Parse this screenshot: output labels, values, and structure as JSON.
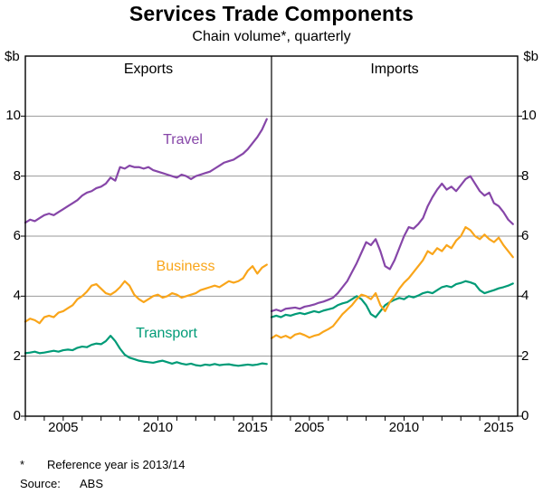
{
  "title": "Services Trade Components",
  "subtitle": "Chain volume*, quarterly",
  "unit_left": "$b",
  "unit_right": "$b",
  "footnote": {
    "marker": "*",
    "text": "Reference year is 2013/14"
  },
  "source": {
    "label": "Source:",
    "value": "ABS"
  },
  "chart_data": {
    "type": "line",
    "title": "Services Trade Components",
    "subtitle": "Chain volume*, quarterly",
    "unit": "$b",
    "x_start": 2003.0,
    "x_step": 0.25,
    "xlim": [
      2003,
      2016
    ],
    "ylim": [
      0,
      12
    ],
    "yticks": [
      0,
      2,
      4,
      6,
      8,
      10
    ],
    "xticks_labeled": [
      2005,
      2010,
      2015
    ],
    "grid": "horizontal",
    "legend_position": "inline-labels",
    "colors": {
      "Travel": "#8646A8",
      "Business": "#F9A51A",
      "Transport": "#009B77"
    },
    "panels": [
      {
        "name": "Exports",
        "series": [
          {
            "name": "Travel",
            "values": [
              6.45,
              6.55,
              6.5,
              6.6,
              6.7,
              6.75,
              6.7,
              6.8,
              6.9,
              7.0,
              7.1,
              7.2,
              7.35,
              7.45,
              7.5,
              7.6,
              7.65,
              7.75,
              7.95,
              7.85,
              8.3,
              8.25,
              8.35,
              8.3,
              8.3,
              8.25,
              8.3,
              8.2,
              8.15,
              8.1,
              8.05,
              8.0,
              7.95,
              8.05,
              8.0,
              7.9,
              8.0,
              8.05,
              8.1,
              8.15,
              8.25,
              8.35,
              8.45,
              8.5,
              8.55,
              8.65,
              8.75,
              8.9,
              9.1,
              9.3,
              9.55,
              9.9
            ]
          },
          {
            "name": "Business",
            "values": [
              3.15,
              3.25,
              3.2,
              3.1,
              3.3,
              3.35,
              3.3,
              3.45,
              3.5,
              3.6,
              3.7,
              3.9,
              4.0,
              4.15,
              4.35,
              4.4,
              4.25,
              4.1,
              4.05,
              4.15,
              4.3,
              4.5,
              4.35,
              4.05,
              3.9,
              3.8,
              3.9,
              4.0,
              4.05,
              3.95,
              4.0,
              4.1,
              4.05,
              3.95,
              4.0,
              4.05,
              4.1,
              4.2,
              4.25,
              4.3,
              4.35,
              4.3,
              4.4,
              4.5,
              4.45,
              4.5,
              4.6,
              4.85,
              5.0,
              4.75,
              4.95,
              5.05
            ]
          },
          {
            "name": "Transport",
            "values": [
              2.1,
              2.12,
              2.15,
              2.1,
              2.12,
              2.15,
              2.18,
              2.15,
              2.2,
              2.22,
              2.2,
              2.28,
              2.32,
              2.3,
              2.38,
              2.42,
              2.4,
              2.5,
              2.68,
              2.5,
              2.25,
              2.05,
              1.95,
              1.9,
              1.85,
              1.82,
              1.8,
              1.78,
              1.82,
              1.85,
              1.8,
              1.75,
              1.8,
              1.75,
              1.72,
              1.75,
              1.7,
              1.68,
              1.72,
              1.7,
              1.74,
              1.7,
              1.72,
              1.73,
              1.7,
              1.68,
              1.7,
              1.72,
              1.7,
              1.72,
              1.76,
              1.74
            ]
          }
        ]
      },
      {
        "name": "Imports",
        "series": [
          {
            "name": "Travel",
            "values": [
              3.5,
              3.55,
              3.5,
              3.58,
              3.6,
              3.62,
              3.58,
              3.65,
              3.68,
              3.72,
              3.78,
              3.82,
              3.88,
              3.95,
              4.1,
              4.3,
              4.5,
              4.8,
              5.1,
              5.45,
              5.8,
              5.7,
              5.9,
              5.5,
              5.0,
              4.9,
              5.2,
              5.6,
              6.0,
              6.3,
              6.25,
              6.4,
              6.6,
              7.0,
              7.3,
              7.55,
              7.75,
              7.55,
              7.65,
              7.5,
              7.7,
              7.9,
              8.0,
              7.75,
              7.5,
              7.35,
              7.45,
              7.1,
              7.0,
              6.8,
              6.55,
              6.4
            ]
          },
          {
            "name": "Business",
            "values": [
              2.6,
              2.7,
              2.62,
              2.68,
              2.6,
              2.72,
              2.76,
              2.7,
              2.62,
              2.68,
              2.72,
              2.82,
              2.9,
              3.0,
              3.2,
              3.4,
              3.55,
              3.7,
              3.9,
              4.05,
              4.0,
              3.9,
              4.1,
              3.7,
              3.5,
              3.8,
              4.0,
              4.25,
              4.45,
              4.6,
              4.8,
              5.0,
              5.2,
              5.5,
              5.4,
              5.6,
              5.5,
              5.7,
              5.6,
              5.85,
              6.0,
              6.3,
              6.2,
              6.0,
              5.9,
              6.05,
              5.9,
              5.8,
              5.95,
              5.7,
              5.5,
              5.3
            ]
          },
          {
            "name": "Transport",
            "values": [
              3.3,
              3.35,
              3.3,
              3.38,
              3.35,
              3.4,
              3.44,
              3.4,
              3.45,
              3.5,
              3.46,
              3.52,
              3.56,
              3.6,
              3.7,
              3.76,
              3.8,
              3.9,
              4.0,
              3.9,
              3.7,
              3.4,
              3.3,
              3.5,
              3.7,
              3.8,
              3.88,
              3.94,
              3.9,
              4.0,
              3.96,
              4.02,
              4.1,
              4.14,
              4.1,
              4.2,
              4.3,
              4.34,
              4.3,
              4.4,
              4.44,
              4.5,
              4.46,
              4.4,
              4.2,
              4.1,
              4.15,
              4.2,
              4.26,
              4.3,
              4.35,
              4.42
            ]
          }
        ]
      }
    ]
  }
}
